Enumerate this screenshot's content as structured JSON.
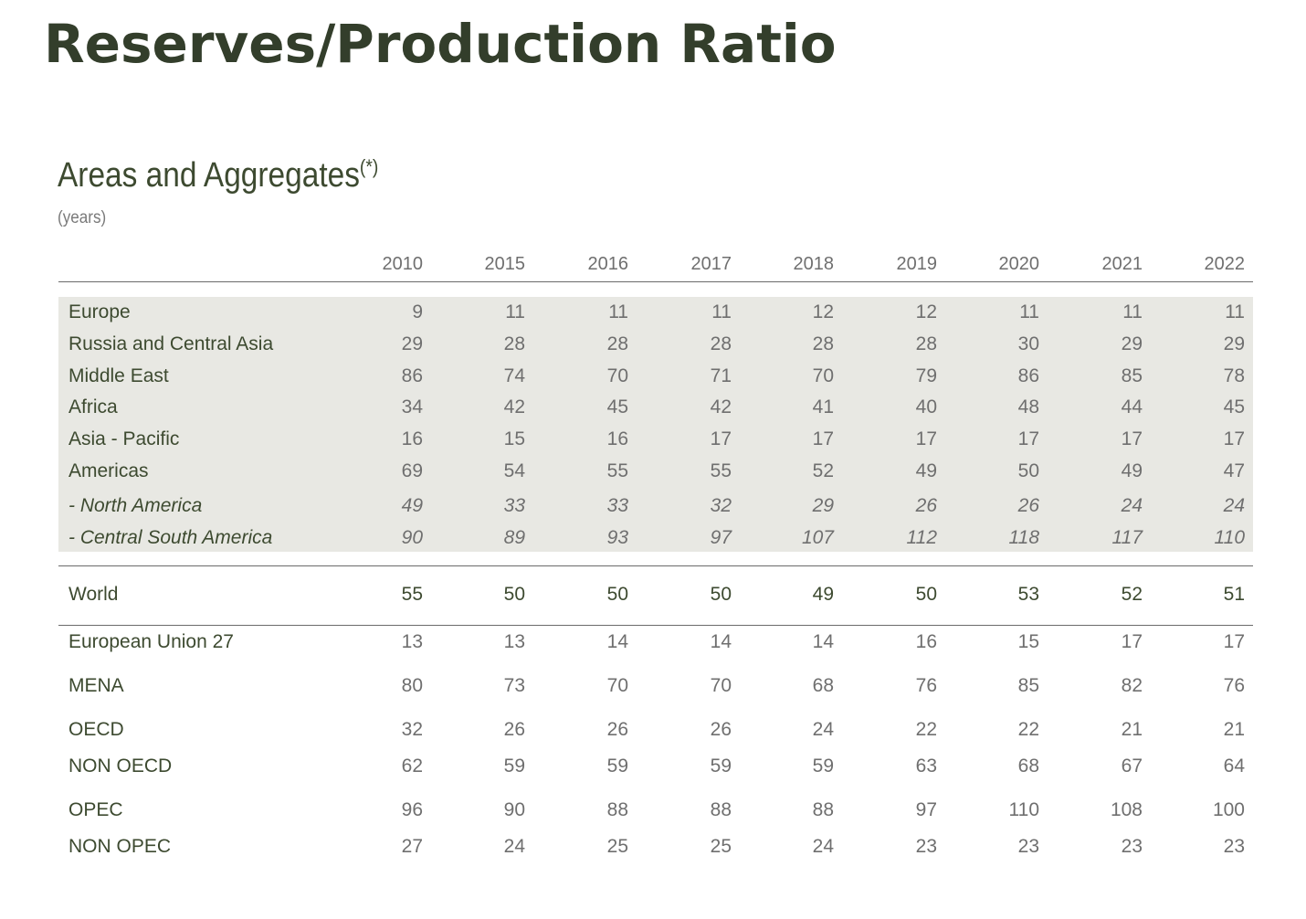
{
  "page_title": "Reserves/Production Ratio",
  "section": {
    "title": "Areas and Aggregates",
    "title_sup": "(*)",
    "unit": "(years)"
  },
  "years": [
    "2010",
    "2015",
    "2016",
    "2017",
    "2018",
    "2019",
    "2020",
    "2021",
    "2022"
  ],
  "areas": [
    {
      "label": "Europe",
      "values": [
        "9",
        "11",
        "11",
        "11",
        "12",
        "12",
        "11",
        "11",
        "11"
      ]
    },
    {
      "label": "Russia and Central Asia",
      "values": [
        "29",
        "28",
        "28",
        "28",
        "28",
        "28",
        "30",
        "29",
        "29"
      ]
    },
    {
      "label": "Middle East",
      "values": [
        "86",
        "74",
        "70",
        "71",
        "70",
        "79",
        "86",
        "85",
        "78"
      ]
    },
    {
      "label": "Africa",
      "values": [
        "34",
        "42",
        "45",
        "42",
        "41",
        "40",
        "48",
        "44",
        "45"
      ]
    },
    {
      "label": "Asia - Pacific",
      "values": [
        "16",
        "15",
        "16",
        "17",
        "17",
        "17",
        "17",
        "17",
        "17"
      ]
    },
    {
      "label": "Americas",
      "values": [
        "69",
        "54",
        "55",
        "55",
        "52",
        "49",
        "50",
        "49",
        "47"
      ]
    },
    {
      "label": "- North America",
      "values": [
        "49",
        "33",
        "33",
        "32",
        "29",
        "26",
        "26",
        "24",
        "24"
      ]
    },
    {
      "label": "- Central South America",
      "values": [
        "90",
        "89",
        "93",
        "97",
        "107",
        "112",
        "118",
        "117",
        "110"
      ]
    }
  ],
  "world": {
    "label": "World",
    "values": [
      "55",
      "50",
      "50",
      "50",
      "49",
      "50",
      "53",
      "52",
      "51"
    ]
  },
  "aggregates": [
    {
      "label": "European Union 27",
      "values": [
        "13",
        "13",
        "14",
        "14",
        "14",
        "16",
        "15",
        "17",
        "17"
      ]
    },
    {
      "label": "MENA",
      "values": [
        "80",
        "73",
        "70",
        "70",
        "68",
        "76",
        "85",
        "82",
        "76"
      ]
    },
    {
      "label": "OECD",
      "values": [
        "32",
        "26",
        "26",
        "26",
        "24",
        "22",
        "22",
        "21",
        "21"
      ]
    },
    {
      "label": "NON OECD",
      "values": [
        "62",
        "59",
        "59",
        "59",
        "59",
        "63",
        "68",
        "67",
        "64"
      ]
    },
    {
      "label": "OPEC",
      "values": [
        "96",
        "90",
        "88",
        "88",
        "88",
        "97",
        "110",
        "108",
        "100"
      ]
    },
    {
      "label": "NON OPEC",
      "values": [
        "27",
        "24",
        "25",
        "25",
        "24",
        "23",
        "23",
        "23",
        "23"
      ]
    }
  ]
}
